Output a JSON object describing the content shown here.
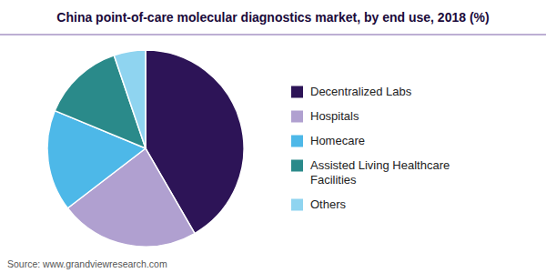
{
  "chart_data": {
    "type": "pie",
    "title": "China point-of-care molecular diagnostics market, by end use, 2018 (%)",
    "categories": [
      "Decentralized Labs",
      "Hospitals",
      "Homecare",
      "Assisted Living Healthcare\nFacilities",
      "Others"
    ],
    "values": [
      40,
      22,
      16,
      13,
      5
    ],
    "colors": [
      "#2d1457",
      "#b0a0d0",
      "#4db8e8",
      "#2a8a8a",
      "#8fd4f0"
    ],
    "legend": "right",
    "annotations": [
      "Source: www.grandviewresearch.com"
    ]
  }
}
